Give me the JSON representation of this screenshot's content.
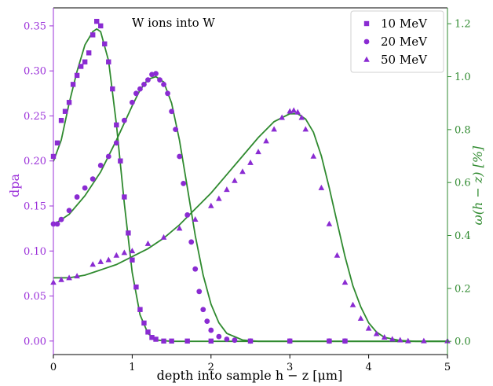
{
  "chart_data": {
    "type": "scatter",
    "annotation": "W ions into W",
    "xlabel": "depth into sample h − z  [μm]",
    "ylabel_left": "dpa",
    "ylabel_right": "ω(h − z) [%]",
    "xlim": [
      0,
      5
    ],
    "ylim_left": [
      -0.015,
      0.37
    ],
    "ylim_right": [
      -0.05,
      1.26
    ],
    "x_ticks": [
      0,
      1,
      2,
      3,
      4,
      5
    ],
    "y_ticks_left": [
      0.0,
      0.05,
      0.1,
      0.15,
      0.2,
      0.25,
      0.3,
      0.35
    ],
    "y_ticks_right": [
      0.0,
      0.2,
      0.4,
      0.6,
      0.8,
      1.0,
      1.2
    ],
    "y_tick_labels_left": [
      "0.00",
      "0.05",
      "0.10",
      "0.15",
      "0.20",
      "0.25",
      "0.30",
      "0.35"
    ],
    "y_tick_labels_right": [
      "0.0",
      "0.2",
      "0.4",
      "0.6",
      "0.8",
      "1.0",
      "1.2"
    ],
    "legend_position": "top-right",
    "colors": {
      "marker": "#8a2bd2",
      "curve": "#2f8a2f",
      "left_axis": "#9b30d9",
      "right_axis": "#2f8a2f"
    },
    "series": [
      {
        "name": "10 MeV",
        "marker": "square",
        "x": [
          0.0,
          0.05,
          0.1,
          0.15,
          0.2,
          0.25,
          0.3,
          0.35,
          0.4,
          0.45,
          0.5,
          0.55,
          0.6,
          0.65,
          0.7,
          0.75,
          0.8,
          0.85,
          0.9,
          0.95,
          1.0,
          1.05,
          1.1,
          1.15,
          1.2,
          1.25,
          1.3,
          1.4,
          1.5,
          1.7,
          2.0,
          2.5,
          3.0,
          3.5,
          3.7
        ],
        "y": [
          0.205,
          0.22,
          0.245,
          0.255,
          0.265,
          0.285,
          0.295,
          0.305,
          0.31,
          0.32,
          0.34,
          0.355,
          0.35,
          0.33,
          0.31,
          0.28,
          0.24,
          0.2,
          0.16,
          0.12,
          0.09,
          0.06,
          0.035,
          0.02,
          0.01,
          0.004,
          0.002,
          0.0,
          0.0,
          0.0,
          0.0,
          0.0,
          0.0,
          0.0,
          0.0
        ]
      },
      {
        "name": "20 MeV",
        "marker": "circle",
        "x": [
          0.0,
          0.05,
          0.1,
          0.2,
          0.3,
          0.4,
          0.5,
          0.6,
          0.7,
          0.8,
          0.9,
          1.0,
          1.05,
          1.1,
          1.15,
          1.2,
          1.25,
          1.3,
          1.35,
          1.4,
          1.45,
          1.5,
          1.55,
          1.6,
          1.65,
          1.7,
          1.75,
          1.8,
          1.85,
          1.9,
          1.95,
          2.0,
          2.1,
          2.2,
          2.3,
          2.5,
          3.0,
          3.5,
          3.7
        ],
        "y": [
          0.13,
          0.13,
          0.135,
          0.145,
          0.16,
          0.17,
          0.18,
          0.195,
          0.205,
          0.22,
          0.245,
          0.265,
          0.275,
          0.28,
          0.285,
          0.29,
          0.296,
          0.297,
          0.29,
          0.285,
          0.275,
          0.255,
          0.235,
          0.205,
          0.175,
          0.14,
          0.11,
          0.08,
          0.055,
          0.035,
          0.022,
          0.012,
          0.005,
          0.002,
          0.001,
          0.0,
          0.0,
          0.0,
          0.0
        ]
      },
      {
        "name": "50 MeV",
        "marker": "triangle",
        "x": [
          0.0,
          0.1,
          0.2,
          0.3,
          0.5,
          0.6,
          0.7,
          0.8,
          0.9,
          1.0,
          1.2,
          1.4,
          1.6,
          1.8,
          2.0,
          2.1,
          2.2,
          2.3,
          2.4,
          2.5,
          2.6,
          2.7,
          2.8,
          2.9,
          3.0,
          3.05,
          3.1,
          3.15,
          3.2,
          3.3,
          3.4,
          3.5,
          3.6,
          3.7,
          3.8,
          3.9,
          4.0,
          4.1,
          4.2,
          4.3,
          4.4,
          4.5,
          4.7,
          5.0
        ],
        "y": [
          0.065,
          0.068,
          0.07,
          0.072,
          0.085,
          0.088,
          0.09,
          0.095,
          0.098,
          0.1,
          0.108,
          0.115,
          0.125,
          0.135,
          0.15,
          0.158,
          0.168,
          0.178,
          0.188,
          0.198,
          0.21,
          0.222,
          0.235,
          0.248,
          0.255,
          0.256,
          0.254,
          0.248,
          0.235,
          0.205,
          0.17,
          0.13,
          0.095,
          0.065,
          0.04,
          0.025,
          0.014,
          0.008,
          0.004,
          0.002,
          0.001,
          0.0,
          0.0,
          0.0
        ]
      }
    ],
    "curves": [
      {
        "x": [
          0.0,
          0.1,
          0.2,
          0.3,
          0.4,
          0.5,
          0.55,
          0.6,
          0.7,
          0.8,
          0.9,
          1.0,
          1.1,
          1.2,
          1.3,
          1.5,
          2.0,
          3.0,
          4.0,
          5.0
        ],
        "y": [
          0.68,
          0.76,
          0.9,
          1.02,
          1.12,
          1.17,
          1.18,
          1.17,
          1.06,
          0.82,
          0.52,
          0.26,
          0.1,
          0.03,
          0.005,
          0.0,
          0.0,
          0.0,
          0.0,
          0.0
        ]
      },
      {
        "x": [
          0.0,
          0.2,
          0.4,
          0.6,
          0.8,
          1.0,
          1.1,
          1.2,
          1.3,
          1.4,
          1.5,
          1.6,
          1.7,
          1.8,
          1.9,
          2.0,
          2.1,
          2.2,
          2.4,
          2.6,
          3.0,
          4.0,
          5.0
        ],
        "y": [
          0.44,
          0.48,
          0.55,
          0.64,
          0.76,
          0.89,
          0.95,
          0.99,
          1.0,
          0.98,
          0.9,
          0.76,
          0.58,
          0.4,
          0.25,
          0.14,
          0.07,
          0.03,
          0.005,
          0.0,
          0.0,
          0.0,
          0.0
        ]
      },
      {
        "x": [
          0.0,
          0.2,
          0.4,
          0.6,
          0.8,
          1.0,
          1.2,
          1.4,
          1.6,
          1.8,
          2.0,
          2.2,
          2.4,
          2.6,
          2.8,
          3.0,
          3.1,
          3.2,
          3.3,
          3.4,
          3.5,
          3.6,
          3.7,
          3.8,
          3.9,
          4.0,
          4.1,
          4.2,
          4.4,
          4.6,
          5.0
        ],
        "y": [
          0.24,
          0.24,
          0.25,
          0.27,
          0.29,
          0.32,
          0.35,
          0.39,
          0.44,
          0.5,
          0.56,
          0.63,
          0.7,
          0.77,
          0.83,
          0.86,
          0.86,
          0.84,
          0.79,
          0.7,
          0.58,
          0.45,
          0.32,
          0.21,
          0.13,
          0.07,
          0.035,
          0.015,
          0.003,
          0.0,
          0.0
        ]
      }
    ]
  }
}
